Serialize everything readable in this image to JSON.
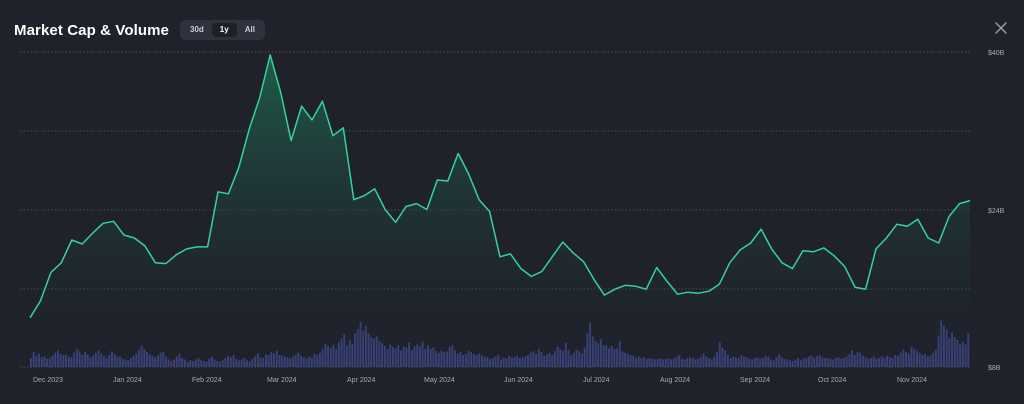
{
  "header": {
    "title": "Market Cap & Volume",
    "tabs": [
      {
        "label": "30d",
        "active": false
      },
      {
        "label": "1y",
        "active": true
      },
      {
        "label": "All",
        "active": false
      }
    ]
  },
  "colors": {
    "background": "#1f222b",
    "line": "#34d399",
    "area_top": "#1f5f4c",
    "volume_bar": "#3b4580",
    "grid": "#5a5e68",
    "axis_text": "#a6aab4"
  },
  "chart_data": {
    "type": "area",
    "title": "Market Cap & Volume",
    "x_tick_labels": [
      "Dec 2023",
      "Jan 2024",
      "Feb 2024",
      "Mar 2024",
      "Apr 2024",
      "May 2024",
      "Jun 2024",
      "Jul 2024",
      "Aug 2024",
      "Sep 2024",
      "Oct 2024",
      "Nov 2024"
    ],
    "y_tick_labels": [
      "$40B",
      "$24B",
      "$8B"
    ],
    "ylim": [
      8,
      40
    ],
    "market_cap_series": {
      "name": "Market Cap ($B)",
      "x_days": [
        0,
        4,
        8,
        12,
        16,
        20,
        24,
        28,
        32,
        36,
        40,
        44,
        48,
        52,
        56,
        60,
        64,
        68,
        72,
        76,
        80,
        84,
        88,
        92,
        96,
        100,
        104,
        108,
        112,
        116,
        120,
        124,
        128,
        132,
        136,
        140,
        144,
        148,
        152,
        156,
        160,
        164,
        168,
        172,
        176,
        180,
        184,
        188,
        192,
        196,
        200,
        204,
        208,
        212,
        216,
        220,
        224,
        228,
        232,
        236,
        240,
        244,
        248,
        252,
        256,
        260,
        264,
        268,
        272,
        276,
        280,
        284,
        288,
        292,
        296,
        300,
        304,
        308,
        312,
        316,
        320,
        324,
        328,
        332,
        336,
        340,
        344,
        348,
        352,
        356,
        360
      ],
      "values": [
        13.0,
        14.7,
        17.6,
        18.6,
        20.9,
        20.5,
        21.6,
        22.6,
        22.8,
        21.4,
        21.1,
        20.3,
        18.6,
        18.5,
        19.4,
        20.0,
        20.2,
        20.2,
        25.8,
        25.6,
        28.3,
        32.2,
        35.4,
        39.7,
        35.9,
        31.0,
        34.5,
        33.1,
        35.0,
        31.5,
        32.3,
        25.0,
        25.4,
        26.1,
        24.0,
        22.7,
        24.3,
        24.6,
        24.0,
        27.0,
        26.9,
        29.7,
        27.6,
        25.0,
        23.8,
        19.2,
        19.5,
        18.0,
        17.2,
        17.7,
        19.2,
        20.7,
        19.6,
        18.7,
        16.9,
        15.3,
        15.9,
        16.3,
        16.2,
        15.9,
        18.1,
        16.7,
        15.4,
        15.6,
        15.5,
        15.7,
        16.4,
        18.6,
        19.9,
        20.6,
        22.0,
        20.0,
        18.6,
        18.0,
        19.8,
        19.7,
        20.1,
        19.3,
        18.2,
        16.1,
        15.9,
        20.0,
        21.1,
        22.5,
        22.3,
        23.0,
        21.1,
        20.6,
        23.3,
        24.6,
        24.9
      ]
    },
    "volume_series": {
      "name": "Volume",
      "note": "relative bar heights, 0-1 scale",
      "values": [
        0.12,
        0.2,
        0.15,
        0.18,
        0.13,
        0.14,
        0.11,
        0.12,
        0.15,
        0.19,
        0.22,
        0.18,
        0.16,
        0.17,
        0.14,
        0.13,
        0.19,
        0.24,
        0.21,
        0.16,
        0.2,
        0.17,
        0.13,
        0.15,
        0.19,
        0.22,
        0.18,
        0.15,
        0.12,
        0.16,
        0.21,
        0.17,
        0.14,
        0.14,
        0.11,
        0.1,
        0.09,
        0.12,
        0.15,
        0.18,
        0.23,
        0.28,
        0.24,
        0.2,
        0.17,
        0.15,
        0.13,
        0.16,
        0.19,
        0.2,
        0.14,
        0.1,
        0.08,
        0.1,
        0.14,
        0.18,
        0.12,
        0.1,
        0.07,
        0.09,
        0.08,
        0.1,
        0.12,
        0.09,
        0.08,
        0.07,
        0.11,
        0.14,
        0.1,
        0.08,
        0.07,
        0.09,
        0.12,
        0.15,
        0.13,
        0.16,
        0.11,
        0.09,
        0.1,
        0.12,
        0.09,
        0.08,
        0.11,
        0.14,
        0.18,
        0.13,
        0.12,
        0.17,
        0.16,
        0.2,
        0.18,
        0.22,
        0.16,
        0.15,
        0.14,
        0.13,
        0.12,
        0.14,
        0.16,
        0.19,
        0.15,
        0.13,
        0.11,
        0.14,
        0.12,
        0.17,
        0.16,
        0.19,
        0.24,
        0.31,
        0.28,
        0.26,
        0.3,
        0.24,
        0.33,
        0.38,
        0.44,
        0.29,
        0.36,
        0.31,
        0.45,
        0.5,
        0.6,
        0.48,
        0.55,
        0.45,
        0.4,
        0.38,
        0.41,
        0.35,
        0.32,
        0.28,
        0.24,
        0.3,
        0.27,
        0.25,
        0.29,
        0.22,
        0.27,
        0.26,
        0.33,
        0.23,
        0.28,
        0.3,
        0.28,
        0.34,
        0.24,
        0.29,
        0.24,
        0.26,
        0.21,
        0.19,
        0.22,
        0.2,
        0.21,
        0.27,
        0.29,
        0.22,
        0.18,
        0.2,
        0.16,
        0.18,
        0.22,
        0.2,
        0.17,
        0.16,
        0.18,
        0.15,
        0.14,
        0.13,
        0.11,
        0.12,
        0.14,
        0.16,
        0.1,
        0.13,
        0.11,
        0.15,
        0.13,
        0.13,
        0.15,
        0.12,
        0.13,
        0.14,
        0.16,
        0.19,
        0.21,
        0.18,
        0.24,
        0.2,
        0.15,
        0.17,
        0.19,
        0.16,
        0.21,
        0.27,
        0.24,
        0.22,
        0.32,
        0.23,
        0.16,
        0.19,
        0.23,
        0.21,
        0.18,
        0.26,
        0.45,
        0.59,
        0.41,
        0.35,
        0.32,
        0.37,
        0.29,
        0.29,
        0.25,
        0.28,
        0.24,
        0.25,
        0.35,
        0.21,
        0.19,
        0.17,
        0.16,
        0.15,
        0.12,
        0.14,
        0.12,
        0.13,
        0.11,
        0.12,
        0.11,
        0.1,
        0.11,
        0.12,
        0.1,
        0.11,
        0.11,
        0.1,
        0.12,
        0.14,
        0.16,
        0.11,
        0.1,
        0.12,
        0.13,
        0.12,
        0.1,
        0.11,
        0.13,
        0.18,
        0.14,
        0.12,
        0.1,
        0.14,
        0.2,
        0.33,
        0.26,
        0.22,
        0.16,
        0.12,
        0.14,
        0.13,
        0.12,
        0.16,
        0.14,
        0.13,
        0.11,
        0.1,
        0.12,
        0.13,
        0.11,
        0.12,
        0.15,
        0.14,
        0.1,
        0.09,
        0.13,
        0.17,
        0.13,
        0.11,
        0.1,
        0.09,
        0.08,
        0.1,
        0.12,
        0.09,
        0.11,
        0.12,
        0.14,
        0.15,
        0.12,
        0.14,
        0.16,
        0.13,
        0.12,
        0.12,
        0.11,
        0.1,
        0.12,
        0.13,
        0.11,
        0.12,
        0.14,
        0.17,
        0.22,
        0.16,
        0.2,
        0.19,
        0.15,
        0.13,
        0.11,
        0.12,
        0.14,
        0.11,
        0.12,
        0.14,
        0.12,
        0.15,
        0.13,
        0.12,
        0.16,
        0.15,
        0.19,
        0.23,
        0.2,
        0.18,
        0.27,
        0.24,
        0.22,
        0.19,
        0.16,
        0.17,
        0.14,
        0.15,
        0.19,
        0.23,
        0.42,
        0.62,
        0.55,
        0.5,
        0.38,
        0.46,
        0.4,
        0.36,
        0.31,
        0.34,
        0.3,
        0.45
      ]
    }
  }
}
